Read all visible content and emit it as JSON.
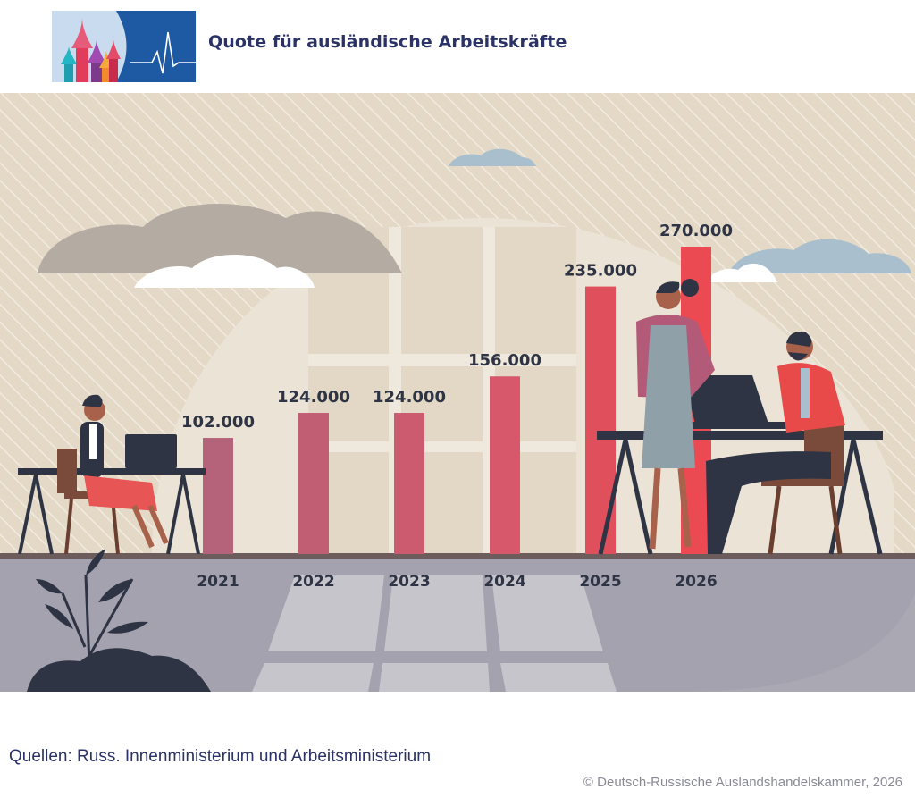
{
  "header": {
    "title": "Quote für ausländische Arbeitskräfte",
    "logo_icon": "kremlin-domes-heartbeat-logo"
  },
  "footer": {
    "source": "Quellen: Russ. Innenministerium und Arbeitsministerium",
    "copyright": "© Deutsch-Russische Auslandshandelskammer, 2026"
  },
  "colors": {
    "bar_2021": "#b5637a",
    "bar_2022": "#c15e74",
    "bar_2023": "#cc5b70",
    "bar_2024": "#d6586a",
    "bar_2025": "#e04f5c",
    "bar_2026": "#ec4a52",
    "text_dark": "#2e3444",
    "title_blue": "#2a3266"
  },
  "chart_data": {
    "type": "bar",
    "categories": [
      "2021",
      "2022",
      "2023",
      "2024",
      "2025",
      "2026"
    ],
    "values": [
      102000,
      124000,
      124000,
      156000,
      235000,
      270000
    ],
    "value_labels": [
      "102.000",
      "124.000",
      "124.000",
      "156.000",
      "235.000",
      "270.000"
    ],
    "ylim": [
      0,
      270000
    ],
    "title": "Quote für ausländische Arbeitskräfte",
    "xlabel": "",
    "ylabel": "",
    "grid": false,
    "legend": "none"
  }
}
